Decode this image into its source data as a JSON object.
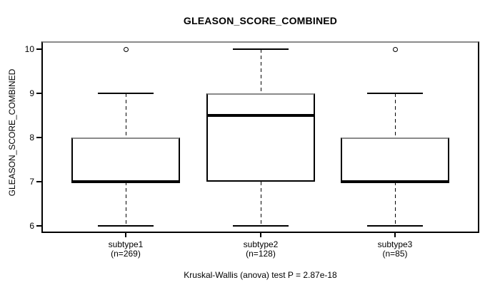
{
  "chart_data": {
    "type": "boxplot",
    "title": "GLEASON_SCORE_COMBINED",
    "ylabel": "GLEASON_SCORE_COMBINED",
    "xlabel": "",
    "ylim": [
      6,
      10
    ],
    "yticks": [
      6,
      7,
      8,
      9,
      10
    ],
    "grid": false,
    "legend": "none",
    "groups": [
      {
        "label": "subtype1",
        "sublabel": "(n=269)",
        "n": 269,
        "whisker_low": 6,
        "q1": 7,
        "median": 7,
        "q3": 8,
        "whisker_high": 9,
        "outliers": [
          10
        ]
      },
      {
        "label": "subtype2",
        "sublabel": "(n=128)",
        "n": 128,
        "whisker_low": 6,
        "q1": 7,
        "median": 8.5,
        "q3": 9,
        "whisker_high": 10,
        "outliers": []
      },
      {
        "label": "subtype3",
        "sublabel": "(n=85)",
        "n": 85,
        "whisker_low": 6,
        "q1": 7,
        "median": 7,
        "q3": 8,
        "whisker_high": 9,
        "outliers": [
          10
        ]
      }
    ],
    "footnote": "Kruskal-Wallis (anova) test P = 2.87e-18",
    "colors": {
      "line": "#000000",
      "background": "#ffffff",
      "frame_shadow": "#8a8a8a"
    }
  }
}
